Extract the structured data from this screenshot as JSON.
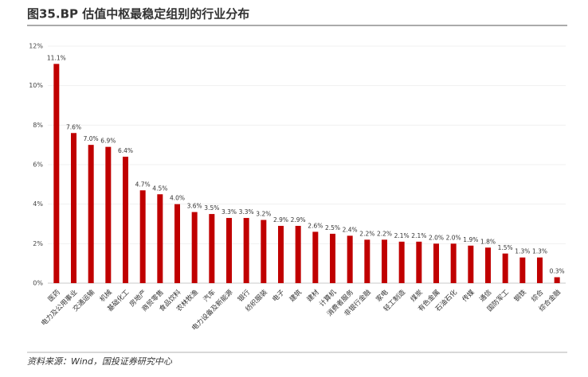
{
  "chart_data": {
    "type": "bar",
    "title": "图35.BP 估值中枢最稳定组别的行业分布",
    "source": "资料来源：Wind，国投证券研究中心",
    "categories": [
      "医药",
      "电力及公用事业",
      "交通运输",
      "机械",
      "基础化工",
      "房地产",
      "商贸零售",
      "食品饮料",
      "农林牧渔",
      "汽车",
      "电力设备及新能源",
      "银行",
      "纺织服装",
      "电子",
      "建筑",
      "建材",
      "计算机",
      "消费者服务",
      "非银行金融",
      "家电",
      "轻工制造",
      "煤炭",
      "有色金属",
      "石油石化",
      "传媒",
      "通信",
      "国防军工",
      "钢铁",
      "综合",
      "综合金融"
    ],
    "values": [
      11.1,
      7.6,
      7.0,
      6.9,
      6.4,
      4.7,
      4.5,
      4.0,
      3.6,
      3.5,
      3.3,
      3.3,
      3.2,
      2.9,
      2.9,
      2.6,
      2.5,
      2.4,
      2.2,
      2.2,
      2.1,
      2.1,
      2.0,
      2.0,
      1.9,
      1.8,
      1.5,
      1.3,
      1.3,
      0.3
    ],
    "value_labels": [
      "11.1%",
      "7.6%",
      "7.0%",
      "6.9%",
      "6.4%",
      "4.7%",
      "4.5%",
      "4.0%",
      "3.6%",
      "3.5%",
      "3.3%",
      "3.3%",
      "3.2%",
      "2.9%",
      "2.9%",
      "2.6%",
      "2.5%",
      "2.4%",
      "2.2%",
      "2.2%",
      "2.1%",
      "2.1%",
      "2.0%",
      "2.0%",
      "1.9%",
      "1.8%",
      "1.5%",
      "1.3%",
      "1.3%",
      "0.3%"
    ],
    "color": "#c00000",
    "ylim": [
      0,
      12
    ],
    "yticks": [
      {
        "value": 0,
        "label": "0%"
      },
      {
        "value": 2,
        "label": "2%"
      },
      {
        "value": 4,
        "label": "4%"
      },
      {
        "value": 6,
        "label": "6%"
      },
      {
        "value": 8,
        "label": "8%"
      },
      {
        "value": 10,
        "label": "10%"
      },
      {
        "value": 12,
        "label": "12%"
      }
    ],
    "grid": true
  }
}
